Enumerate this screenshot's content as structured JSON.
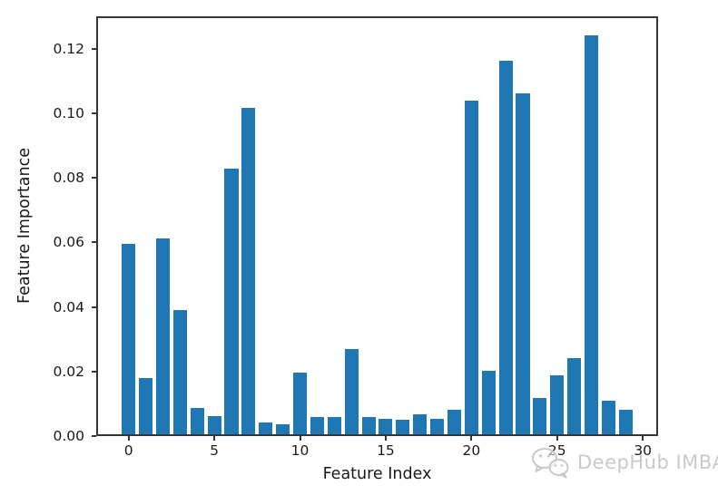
{
  "chart_data": {
    "type": "bar",
    "title": "",
    "xlabel": "Feature Index",
    "ylabel": "Feature Importance",
    "x": [
      0,
      1,
      2,
      3,
      4,
      5,
      6,
      7,
      8,
      9,
      10,
      11,
      12,
      13,
      14,
      15,
      16,
      17,
      18,
      19,
      20,
      21,
      22,
      23,
      24,
      25,
      26,
      27,
      28,
      29
    ],
    "values": [
      0.0589,
      0.0173,
      0.0606,
      0.0386,
      0.0082,
      0.0056,
      0.0824,
      0.1012,
      0.0037,
      0.003,
      0.0192,
      0.0054,
      0.0054,
      0.0265,
      0.0054,
      0.0047,
      0.0045,
      0.0062,
      0.0047,
      0.0075,
      0.1032,
      0.0197,
      0.1157,
      0.1056,
      0.0113,
      0.0183,
      0.0237,
      0.1236,
      0.0104,
      0.0076
    ],
    "xticks": [
      0,
      5,
      10,
      15,
      20,
      25,
      30
    ],
    "ytick_values": [
      0,
      0.02,
      0.04,
      0.06,
      0.08,
      0.1,
      0.12
    ],
    "ytick_labels": [
      "0.00",
      "0.02",
      "0.04",
      "0.06",
      "0.08",
      "0.10",
      "0.12"
    ],
    "xlim": [
      -1.89,
      30.89
    ],
    "ylim": [
      0,
      0.13
    ],
    "bar_width": 0.8,
    "bar_color": "#1f77b4",
    "grid": false,
    "legend": null
  },
  "watermark": {
    "icon": "wechat-logo",
    "text": "DeepHub IMBA",
    "color": "#c9c9c9"
  }
}
